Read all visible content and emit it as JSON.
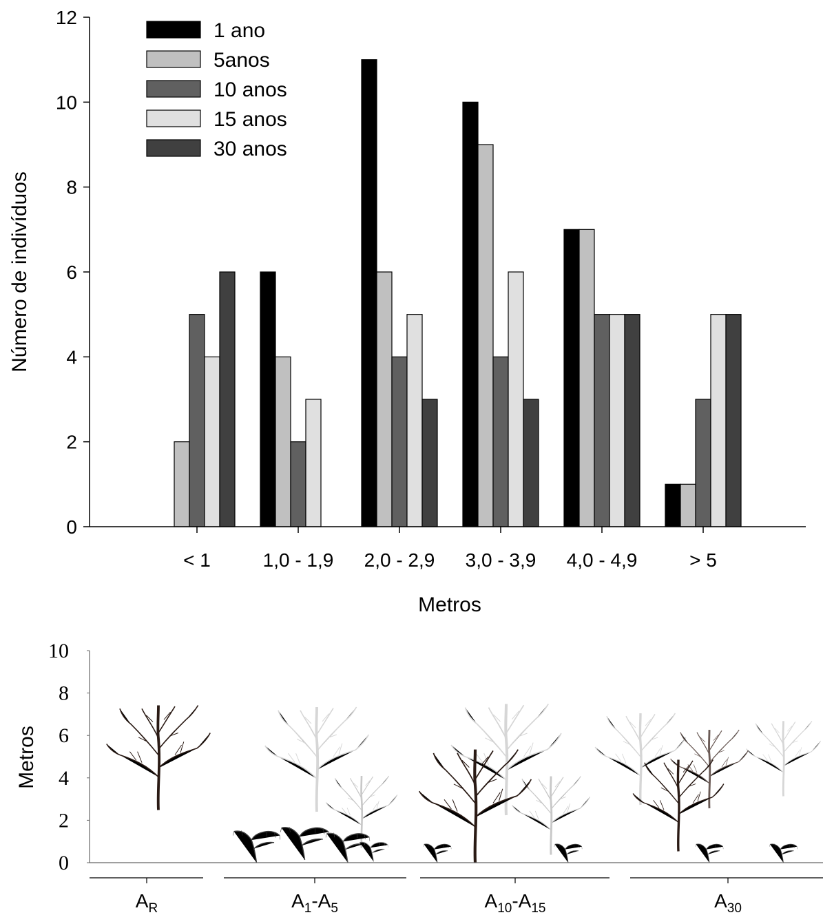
{
  "chart_data": [
    {
      "type": "bar",
      "categories": [
        "< 1",
        "1,0 - 1,9",
        "2,0 - 2,9",
        "3,0 - 3,9",
        "4,0 - 4,9",
        "> 5"
      ],
      "series": [
        {
          "name": "1 ano",
          "color": "#000000",
          "values": [
            0,
            6,
            11,
            10,
            7,
            1
          ]
        },
        {
          "name": "5anos",
          "color": "#c0c0c0",
          "values": [
            2,
            4,
            6,
            9,
            7,
            1
          ]
        },
        {
          "name": "10 anos",
          "color": "#606060",
          "values": [
            5,
            2,
            4,
            4,
            5,
            3
          ]
        },
        {
          "name": "15 anos",
          "color": "#e0e0e0",
          "values": [
            4,
            3,
            5,
            6,
            5,
            5
          ]
        },
        {
          "name": "30 anos",
          "color": "#404040",
          "values": [
            6,
            0,
            3,
            3,
            5,
            5
          ]
        }
      ],
      "ylim": [
        0,
        12
      ],
      "yticks": [
        0,
        2,
        4,
        6,
        8,
        10,
        12
      ],
      "xlabel": "Metros",
      "ylabel": "Número de indivíduos",
      "legend": "upper left"
    },
    {
      "type": "illustration",
      "ylabel": "Metros",
      "ylim": [
        0,
        10
      ],
      "yticks": [
        0,
        2,
        4,
        6,
        8,
        10
      ],
      "categories": [
        [
          "A",
          "R"
        ],
        [
          "A",
          "1",
          "-A",
          "5"
        ],
        [
          "A",
          "10",
          "-A",
          "15"
        ],
        [
          "A",
          "30"
        ]
      ]
    }
  ]
}
